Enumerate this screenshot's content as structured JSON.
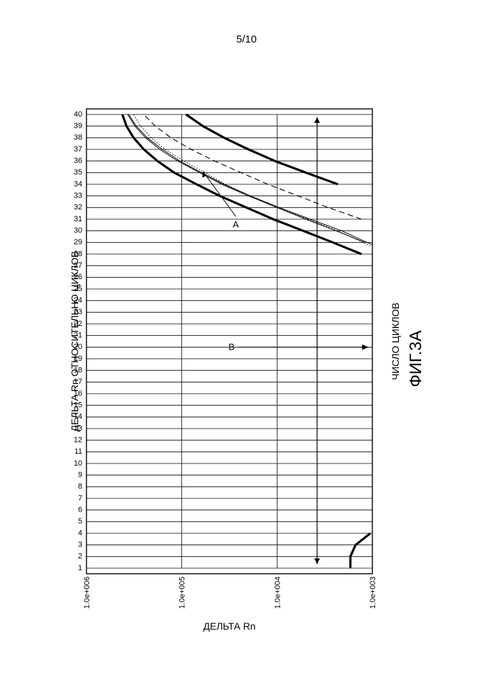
{
  "page": {
    "number": "5/10"
  },
  "chart_data": {
    "type": "line",
    "orientation": "rotated-90-clockwise",
    "title": "ДЕЛЬТА Rn ОТНОСИТЕЛЬНО ЦИКЛОВ",
    "xlabel": "ЧИСЛО ЦИКЛОВ",
    "ylabel": "ДЕЛЬТА Rn",
    "figure_label": "ФИГ.3А",
    "x_ticks": [
      "1",
      "2",
      "3",
      "4",
      "5",
      "6",
      "7",
      "8",
      "9",
      "10",
      "11",
      "12",
      "13",
      "14",
      "15",
      "16",
      "17",
      "18",
      "19",
      "20",
      "21",
      "22",
      "23",
      "24",
      "25",
      "26",
      "27",
      "28",
      "29",
      "30",
      "31",
      "32",
      "33",
      "34",
      "35",
      "36",
      "37",
      "38",
      "39",
      "40"
    ],
    "xlim": [
      1,
      40
    ],
    "y_scale": "log",
    "ylim": [
      1000,
      1000000
    ],
    "y_ticks": [
      1000000,
      100000,
      10000,
      1000
    ],
    "y_tick_labels": [
      "1.0e+006",
      "1.0e+005",
      "1.0e+004",
      "1.0e+003"
    ],
    "grid": true,
    "threshold": 3800,
    "annotations": [
      {
        "text": "A",
        "x": 34,
        "y": 30000
      },
      {
        "text": "B",
        "x": 20,
        "y": 1500
      }
    ],
    "series": [
      {
        "style": "thick",
        "x": [
          1,
          2,
          3,
          4
        ],
        "y": [
          1700,
          1700,
          1500,
          1050
        ]
      },
      {
        "style": "thick",
        "x": [
          28,
          29,
          30,
          31,
          32,
          33,
          34,
          35,
          36,
          37,
          38,
          39,
          40
        ],
        "y": [
          1300,
          2600,
          5300,
          11000,
          21000,
          40000,
          70000,
          120000,
          180000,
          250000,
          320000,
          380000,
          420000
        ]
      },
      {
        "style": "thin",
        "x": [
          29,
          30,
          31,
          32,
          33,
          34,
          35,
          36,
          37,
          38,
          39,
          40
        ],
        "y": [
          1200,
          2400,
          5000,
          10000,
          20000,
          38000,
          65000,
          110000,
          170000,
          240000,
          310000,
          370000
        ]
      },
      {
        "style": "thin",
        "x": [
          28.8,
          30,
          31,
          32,
          33,
          34,
          35,
          36,
          37,
          38,
          39,
          40
        ],
        "y": [
          1000,
          2100,
          4500,
          9500,
          19000,
          36000,
          62000,
          105000,
          160000,
          230000,
          300000,
          360000
        ]
      },
      {
        "style": "dotted",
        "x": [
          28.7,
          30,
          31,
          32,
          33,
          34,
          35,
          36,
          37,
          38,
          39,
          40
        ],
        "y": [
          1050,
          2300,
          4800,
          9800,
          19000,
          35000,
          57000,
          95000,
          150000,
          210000,
          270000,
          320000
        ]
      },
      {
        "style": "dashed",
        "x": [
          31,
          32,
          33,
          34,
          35,
          36,
          37,
          38,
          39,
          40
        ],
        "y": [
          1300,
          2900,
          6000,
          12500,
          24000,
          45000,
          80000,
          130000,
          190000,
          250000
        ]
      },
      {
        "style": "thick",
        "x": [
          34,
          35,
          36,
          37,
          38,
          39,
          40
        ],
        "y": [
          2300,
          5000,
          10500,
          20000,
          36000,
          60000,
          90000
        ]
      }
    ]
  }
}
